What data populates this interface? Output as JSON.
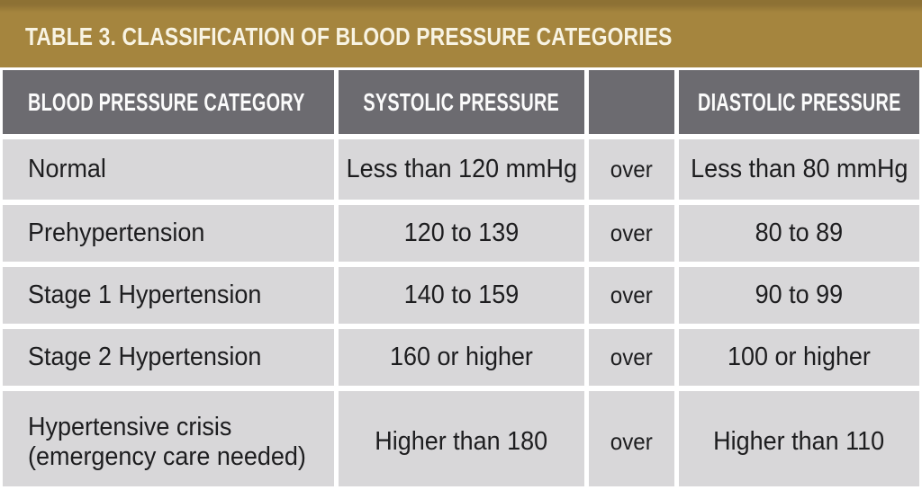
{
  "title": "TABLE 3. CLASSIFICATION OF BLOOD PRESSURE CATEGORIES",
  "chart_data": {
    "type": "table",
    "title": "TABLE 3. CLASSIFICATION OF BLOOD PRESSURE CATEGORIES",
    "columns": [
      "BLOOD PRESSURE CATEGORY",
      "SYSTOLIC PRESSURE",
      "",
      "DIASTOLIC PRESSURE"
    ],
    "rows": [
      {
        "category": "Normal",
        "systolic": "Less than 120 mmHg",
        "connector": "over",
        "diastolic": "Less than 80 mmHg"
      },
      {
        "category": "Prehypertension",
        "systolic": "120 to 139",
        "connector": "over",
        "diastolic": "80 to 89"
      },
      {
        "category": "Stage 1 Hypertension",
        "systolic": "140 to 159",
        "connector": "over",
        "diastolic": "90 to 99"
      },
      {
        "category": "Stage 2 Hypertension",
        "systolic": "160 or higher",
        "connector": "over",
        "diastolic": "100 or higher"
      },
      {
        "category": "Hypertensive crisis\n(emergency care needed)",
        "systolic": "Higher than 180",
        "connector": "over",
        "diastolic": "Higher than 110"
      }
    ]
  },
  "colors": {
    "gold": "#a5853e",
    "gold_dark": "#8d7134",
    "header_bg": "#6c6b70",
    "row_bg": "#d8d7d9",
    "header_text": "#fbfbfb",
    "body_text": "#1d1d1f",
    "title_text": "#f8f3e2"
  }
}
